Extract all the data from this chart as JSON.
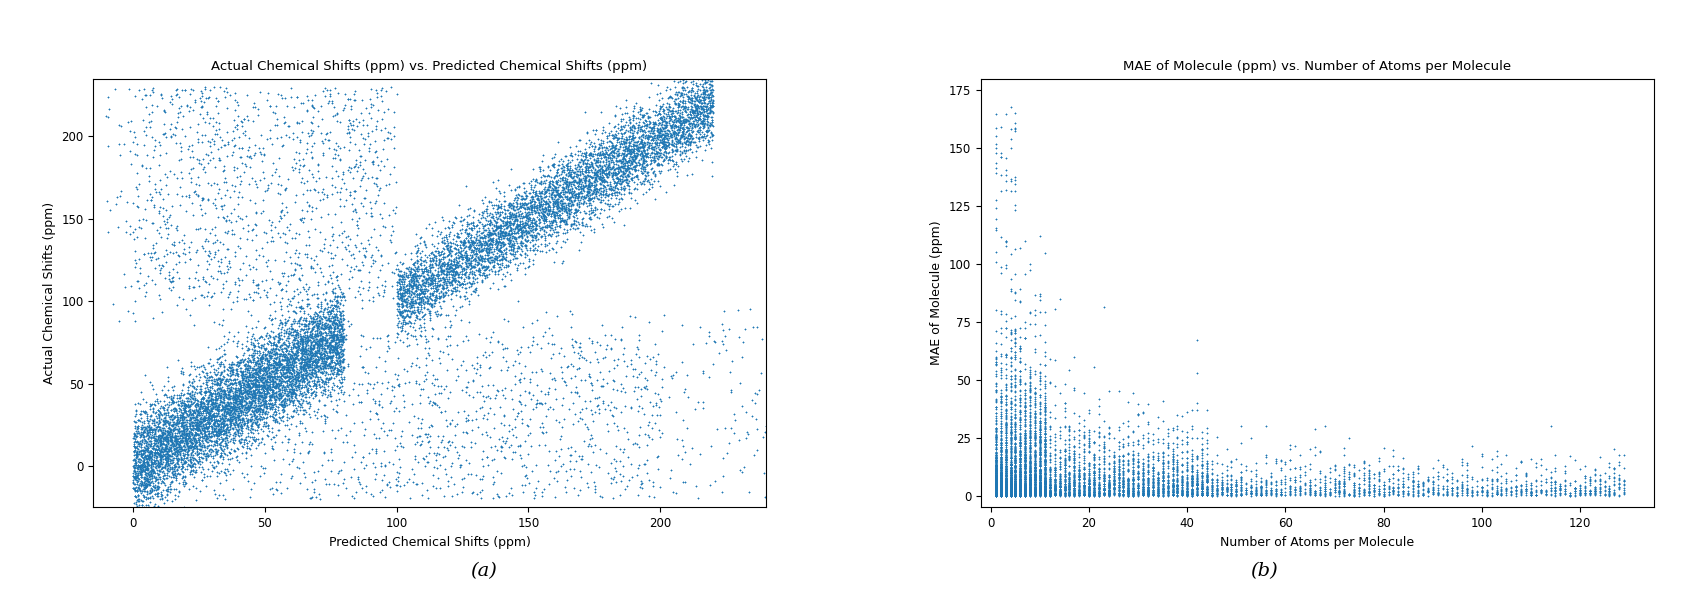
{
  "plot1": {
    "title": "Actual Chemical Shifts (ppm) vs. Predicted Chemical Shifts (ppm)",
    "xlabel": "Predicted Chemical Shifts (ppm)",
    "ylabel": "Actual Chemical Shifts (ppm)",
    "xlim": [
      -15,
      240
    ],
    "ylim": [
      -25,
      235
    ],
    "xticks": [
      0,
      50,
      100,
      150,
      200
    ],
    "yticks": [
      0,
      50,
      100,
      150,
      200
    ],
    "color": "#1f77b4",
    "marker": "+",
    "markersize": 2,
    "linewidths": 0.6,
    "alpha": 1.0,
    "n_ali": 7000,
    "n_aro": 6000,
    "n_cross": 2000,
    "seed": 42
  },
  "plot2": {
    "title": "MAE of Molecule (ppm) vs. Number of Atoms per Molecule",
    "xlabel": "Number of Atoms per Molecule",
    "ylabel": "MAE of Molecule (ppm)",
    "xlim": [
      -2,
      135
    ],
    "ylim": [
      -5,
      180
    ],
    "xticks": [
      0,
      20,
      40,
      60,
      80,
      100,
      120
    ],
    "yticks": [
      0,
      25,
      50,
      75,
      100,
      125,
      150,
      175
    ],
    "color": "#1f77b4",
    "marker": "+",
    "markersize": 2,
    "linewidths": 0.6,
    "alpha": 1.0,
    "n_points": 5000,
    "seed": 7
  },
  "subtitle_a": "(a)",
  "subtitle_b": "(b)",
  "subtitle_fontsize": 14,
  "title_fontsize": 9.5,
  "label_fontsize": 9,
  "tick_fontsize": 8.5,
  "background_color": "#ffffff"
}
